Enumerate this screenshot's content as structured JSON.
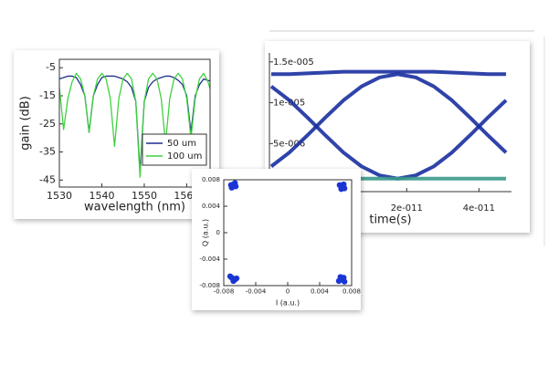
{
  "chart_data": [
    {
      "type": "line",
      "x_label": "wavelength (nm)",
      "y_label": "gain (dB)",
      "x": [
        1530,
        1531,
        1532,
        1533,
        1534,
        1535,
        1536,
        1537,
        1538,
        1539,
        1540,
        1541,
        1542,
        1543,
        1544,
        1545,
        1546,
        1547,
        1548,
        1549,
        1550,
        1551,
        1552,
        1553,
        1554,
        1555,
        1556,
        1557,
        1558,
        1559,
        1560,
        1561,
        1562,
        1563,
        1564,
        1565,
        1566
      ],
      "series": [
        {
          "name": "50 um",
          "color": "#1f2f8f",
          "values": [
            -9,
            -8.5,
            -8,
            -8,
            -8.5,
            -11,
            -15,
            -28,
            -15,
            -11,
            -8.5,
            -8,
            -8,
            -8,
            -8.5,
            -9,
            -10,
            -12,
            -17,
            -42,
            -17,
            -12,
            -10,
            -9,
            -8.5,
            -8,
            -8,
            -8.5,
            -9.5,
            -11,
            -15,
            -28,
            -15,
            -11,
            -9,
            -9.5,
            -10
          ]
        },
        {
          "name": "100 um",
          "color": "#3fd23f",
          "values": [
            -12,
            -27,
            -16,
            -10,
            -7,
            -9,
            -15,
            -28,
            -15,
            -9,
            -7,
            -9,
            -16,
            -33,
            -16,
            -9,
            -7,
            -9,
            -17,
            -44,
            -17,
            -9,
            -7,
            -9,
            -16,
            -32,
            -16,
            -9,
            -7,
            -9,
            -16,
            -30,
            -16,
            -9,
            -7,
            -10,
            -15
          ]
        }
      ],
      "xlim": [
        1530,
        1565.5
      ],
      "xticks": [
        1530,
        1540,
        1550,
        1560
      ],
      "ylim": [
        -47.5,
        -2
      ],
      "yticks": [
        -5,
        -15,
        -25,
        -35,
        -45
      ],
      "legend": "lower right"
    },
    {
      "type": "line",
      "x_label": "time(s)",
      "x": [
        -1.75e-11,
        -1.25e-11,
        -7.5e-12,
        -2.5e-12,
        2.5e-12,
        7.5e-12,
        1.25e-11,
        1.75e-11,
        2.25e-11,
        2.75e-11,
        3.25e-11,
        3.75e-11,
        4.25e-11,
        4.75e-11
      ],
      "series": [
        {
          "color": "#1a2fa0",
          "values": [
            1.35e-05,
            1.35e-05,
            1.36e-05,
            1.37e-05,
            1.38e-05,
            1.38e-05,
            1.38e-05,
            1.38e-05,
            1.38e-05,
            1.38e-05,
            1.37e-05,
            1.36e-05,
            1.35e-05,
            1.35e-05
          ]
        },
        {
          "color": "#1a2fa0",
          "values": [
            2.2e-06,
            3.9e-06,
            6e-06,
            8.2e-06,
            1.03e-05,
            1.2e-05,
            1.31e-05,
            1.35e-05,
            1.31e-05,
            1.2e-05,
            1.03e-05,
            8.2e-06,
            6e-06,
            3.9e-06
          ]
        },
        {
          "color": "#1a2fa0",
          "values": [
            1.2e-05,
            1.03e-05,
            8.2e-06,
            6e-06,
            3.9e-06,
            2.2e-06,
            1.1e-06,
            7e-07,
            1.1e-06,
            2.2e-06,
            3.9e-06,
            6e-06,
            8.2e-06,
            1.03e-05
          ]
        },
        {
          "color": "#3a9a8a",
          "values": [
            7e-07,
            7e-07,
            7e-07,
            7e-07,
            7e-07,
            7e-07,
            7e-07,
            7e-07,
            7e-07,
            7e-07,
            7e-07,
            7e-07,
            7e-07,
            7e-07
          ]
        }
      ],
      "xlim": [
        -1.8e-11,
        4.9e-11
      ],
      "xticks": [
        {
          "value": 2e-11,
          "label": "2e-011"
        },
        {
          "value": 4e-11,
          "label": "4e-011"
        }
      ],
      "ylim": [
        -8.9e-07,
        1.61e-05
      ],
      "yticks": [
        {
          "value": 5e-06,
          "label": "5e-006"
        },
        {
          "value": 1e-05,
          "label": "1e-005"
        },
        {
          "value": 1.5e-05,
          "label": "1.5e-005"
        }
      ]
    },
    {
      "type": "scatter",
      "x_label": "I (a.u.)",
      "y_label": "Q (a.u.)",
      "color": "#1a35d6",
      "x": [
        -0.0068,
        -0.0065,
        -0.007,
        -0.0066,
        -0.0071,
        0.0068,
        0.0071,
        0.0065,
        0.007,
        0.0067,
        -0.007,
        -0.0066,
        -0.0072,
        -0.0068,
        -0.0064,
        0.0067,
        0.007,
        0.0064,
        0.0071,
        0.0066
      ],
      "values": [
        0.0073,
        0.007,
        0.0068,
        0.0075,
        0.0072,
        0.007,
        0.0067,
        0.0072,
        0.0073,
        0.0066,
        -0.0068,
        -0.0071,
        -0.0066,
        -0.0073,
        -0.0069,
        -0.0071,
        -0.0068,
        -0.0073,
        -0.0074,
        -0.0067
      ],
      "xlim": [
        -0.008,
        0.008
      ],
      "xticks": [
        -0.008,
        -0.004,
        0,
        0.004,
        0.008
      ],
      "ylim": [
        -0.008,
        0.008
      ],
      "yticks": [
        -0.008,
        -0.004,
        0,
        0.004,
        0.008
      ]
    }
  ]
}
